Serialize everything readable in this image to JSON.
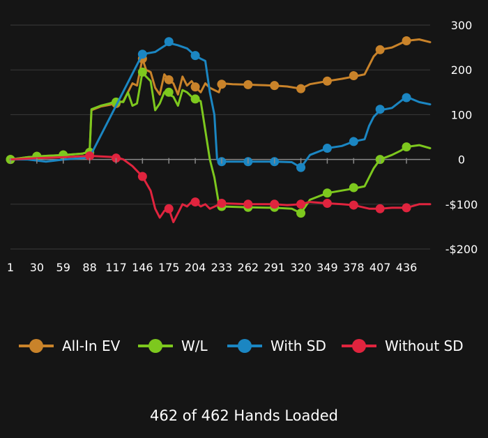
{
  "chart_data": {
    "type": "line",
    "x_ticks": [
      "1",
      "30",
      "59",
      "88",
      "117",
      "146",
      "175",
      "204",
      "233",
      "262",
      "291",
      "320",
      "349",
      "378",
      "407",
      "436"
    ],
    "y_ticks": [
      {
        "value": 300,
        "label": "300"
      },
      {
        "value": 200,
        "label": "200"
      },
      {
        "value": 100,
        "label": "100"
      },
      {
        "value": 0,
        "label": "0"
      },
      {
        "value": -100,
        "label": "-$100"
      },
      {
        "value": -200,
        "label": "-$200"
      }
    ],
    "ylim": [
      -200,
      300
    ],
    "xlim": [
      1,
      462
    ],
    "grid": true,
    "legend_position": "bottom",
    "series": [
      {
        "name": "All-In EV",
        "color": "#C9832A",
        "points": [
          [
            1,
            0
          ],
          [
            20,
            5
          ],
          [
            40,
            8
          ],
          [
            60,
            10
          ],
          [
            80,
            13
          ],
          [
            88,
            18
          ],
          [
            90,
            110
          ],
          [
            100,
            118
          ],
          [
            110,
            122
          ],
          [
            117,
            125
          ],
          [
            125,
            130
          ],
          [
            130,
            150
          ],
          [
            135,
            170
          ],
          [
            140,
            165
          ],
          [
            146,
            225
          ],
          [
            150,
            200
          ],
          [
            155,
            195
          ],
          [
            160,
            160
          ],
          [
            165,
            145
          ],
          [
            170,
            190
          ],
          [
            175,
            178
          ],
          [
            180,
            170
          ],
          [
            185,
            145
          ],
          [
            190,
            185
          ],
          [
            195,
            165
          ],
          [
            200,
            175
          ],
          [
            205,
            160
          ],
          [
            210,
            150
          ],
          [
            215,
            170
          ],
          [
            220,
            160
          ],
          [
            225,
            155
          ],
          [
            230,
            150
          ],
          [
            233,
            170
          ],
          [
            245,
            168
          ],
          [
            262,
            167
          ],
          [
            275,
            166
          ],
          [
            291,
            165
          ],
          [
            305,
            163
          ],
          [
            320,
            158
          ],
          [
            330,
            168
          ],
          [
            349,
            175
          ],
          [
            365,
            180
          ],
          [
            378,
            185
          ],
          [
            390,
            190
          ],
          [
            395,
            210
          ],
          [
            400,
            230
          ],
          [
            407,
            245
          ],
          [
            420,
            250
          ],
          [
            436,
            265
          ],
          [
            450,
            268
          ],
          [
            462,
            262
          ]
        ],
        "markers": [
          [
            1,
            0
          ],
          [
            30,
            7
          ],
          [
            59,
            10
          ],
          [
            88,
            16
          ],
          [
            117,
            125
          ],
          [
            146,
            225
          ],
          [
            175,
            178
          ],
          [
            204,
            162
          ],
          [
            233,
            168
          ],
          [
            262,
            167
          ],
          [
            291,
            165
          ],
          [
            320,
            158
          ],
          [
            349,
            175
          ],
          [
            378,
            187
          ],
          [
            407,
            245
          ],
          [
            436,
            265
          ]
        ]
      },
      {
        "name": "W/L",
        "color": "#7DC81E",
        "points": [
          [
            1,
            0
          ],
          [
            20,
            5
          ],
          [
            40,
            8
          ],
          [
            60,
            10
          ],
          [
            80,
            13
          ],
          [
            88,
            18
          ],
          [
            90,
            112
          ],
          [
            100,
            120
          ],
          [
            110,
            125
          ],
          [
            117,
            130
          ],
          [
            125,
            128
          ],
          [
            130,
            150
          ],
          [
            135,
            120
          ],
          [
            140,
            125
          ],
          [
            146,
            195
          ],
          [
            150,
            185
          ],
          [
            155,
            175
          ],
          [
            160,
            110
          ],
          [
            165,
            125
          ],
          [
            170,
            150
          ],
          [
            175,
            145
          ],
          [
            180,
            140
          ],
          [
            185,
            120
          ],
          [
            190,
            155
          ],
          [
            195,
            150
          ],
          [
            200,
            140
          ],
          [
            205,
            135
          ],
          [
            210,
            130
          ],
          [
            212,
            105
          ],
          [
            220,
            0
          ],
          [
            225,
            -40
          ],
          [
            230,
            -100
          ],
          [
            233,
            -105
          ],
          [
            262,
            -107
          ],
          [
            291,
            -108
          ],
          [
            310,
            -110
          ],
          [
            320,
            -120
          ],
          [
            330,
            -90
          ],
          [
            349,
            -75
          ],
          [
            378,
            -65
          ],
          [
            390,
            -60
          ],
          [
            400,
            -20
          ],
          [
            407,
            0
          ],
          [
            420,
            10
          ],
          [
            430,
            20
          ],
          [
            436,
            28
          ],
          [
            450,
            32
          ],
          [
            462,
            25
          ]
        ],
        "markers": [
          [
            1,
            0
          ],
          [
            30,
            7
          ],
          [
            59,
            10
          ],
          [
            88,
            16
          ],
          [
            117,
            128
          ],
          [
            146,
            195
          ],
          [
            175,
            150
          ],
          [
            204,
            135
          ],
          [
            233,
            -105
          ],
          [
            262,
            -107
          ],
          [
            291,
            -107
          ],
          [
            320,
            -120
          ],
          [
            349,
            -75
          ],
          [
            378,
            -63
          ],
          [
            407,
            0
          ],
          [
            436,
            28
          ]
        ]
      },
      {
        "name": "With SD",
        "color": "#1B86C2",
        "points": [
          [
            1,
            0
          ],
          [
            20,
            0
          ],
          [
            40,
            -5
          ],
          [
            60,
            0
          ],
          [
            80,
            3
          ],
          [
            88,
            5
          ],
          [
            146,
            235
          ],
          [
            160,
            240
          ],
          [
            175,
            260
          ],
          [
            185,
            255
          ],
          [
            195,
            248
          ],
          [
            204,
            232
          ],
          [
            210,
            225
          ],
          [
            215,
            220
          ],
          [
            220,
            150
          ],
          [
            225,
            100
          ],
          [
            228,
            0
          ],
          [
            233,
            -5
          ],
          [
            262,
            -5
          ],
          [
            291,
            -5
          ],
          [
            310,
            -6
          ],
          [
            320,
            -18
          ],
          [
            330,
            10
          ],
          [
            349,
            25
          ],
          [
            365,
            30
          ],
          [
            378,
            40
          ],
          [
            390,
            45
          ],
          [
            395,
            75
          ],
          [
            400,
            95
          ],
          [
            407,
            110
          ],
          [
            420,
            115
          ],
          [
            436,
            140
          ],
          [
            450,
            128
          ],
          [
            462,
            123
          ]
        ],
        "markers": [
          [
            146,
            235
          ],
          [
            175,
            263
          ],
          [
            204,
            232
          ],
          [
            233,
            -5
          ],
          [
            262,
            -5
          ],
          [
            291,
            -5
          ],
          [
            320,
            -18
          ],
          [
            349,
            25
          ],
          [
            378,
            40
          ],
          [
            407,
            112
          ],
          [
            436,
            138
          ]
        ]
      },
      {
        "name": "Without SD",
        "color": "#E0243E",
        "points": [
          [
            1,
            0
          ],
          [
            30,
            3
          ],
          [
            59,
            5
          ],
          [
            88,
            8
          ],
          [
            117,
            5
          ],
          [
            125,
            0
          ],
          [
            135,
            -15
          ],
          [
            146,
            -38
          ],
          [
            155,
            -70
          ],
          [
            160,
            -110
          ],
          [
            165,
            -130
          ],
          [
            170,
            -115
          ],
          [
            175,
            -110
          ],
          [
            180,
            -140
          ],
          [
            185,
            -120
          ],
          [
            190,
            -100
          ],
          [
            195,
            -105
          ],
          [
            200,
            -95
          ],
          [
            204,
            -95
          ],
          [
            210,
            -105
          ],
          [
            215,
            -100
          ],
          [
            220,
            -110
          ],
          [
            233,
            -98
          ],
          [
            262,
            -100
          ],
          [
            291,
            -100
          ],
          [
            305,
            -102
          ],
          [
            320,
            -100
          ],
          [
            330,
            -95
          ],
          [
            349,
            -98
          ],
          [
            365,
            -100
          ],
          [
            378,
            -102
          ],
          [
            395,
            -110
          ],
          [
            407,
            -110
          ],
          [
            420,
            -108
          ],
          [
            436,
            -108
          ],
          [
            450,
            -100
          ],
          [
            462,
            -100
          ]
        ],
        "markers": [
          [
            88,
            8
          ],
          [
            117,
            3
          ],
          [
            146,
            -38
          ],
          [
            175,
            -110
          ],
          [
            204,
            -95
          ],
          [
            233,
            -98
          ],
          [
            262,
            -100
          ],
          [
            291,
            -100
          ],
          [
            320,
            -100
          ],
          [
            349,
            -98
          ],
          [
            378,
            -102
          ],
          [
            407,
            -110
          ],
          [
            436,
            -108
          ]
        ]
      }
    ]
  },
  "status": {
    "loaded_text": "462 of 462 Hands Loaded"
  }
}
